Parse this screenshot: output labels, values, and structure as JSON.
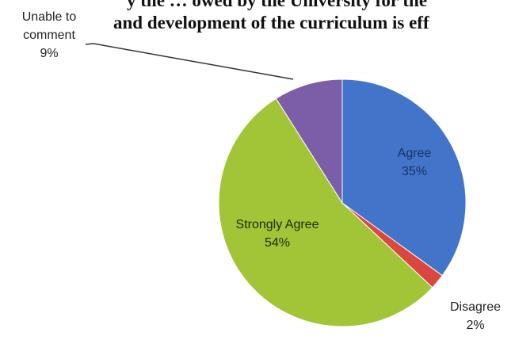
{
  "title_lines": [
    "y the … owed by the University for the",
    "and development of the curriculum is eff"
  ],
  "chart_data": {
    "type": "pie",
    "slices": [
      {
        "label": "Agree",
        "value": 35,
        "pct": "35%",
        "color": "#4275c9"
      },
      {
        "label": "Disagree",
        "value": 2,
        "pct": "2%",
        "color": "#d9473f"
      },
      {
        "label": "Strongly Agree",
        "value": 54,
        "pct": "54%",
        "color": "#a2c437"
      },
      {
        "label": "Unable to comment",
        "label_lines": [
          "Unable to",
          "comment"
        ],
        "value": 9,
        "pct": "9%",
        "color": "#7b5ea7"
      }
    ],
    "start": "12 o'clock",
    "direction": "clockwise",
    "legend": "none"
  }
}
